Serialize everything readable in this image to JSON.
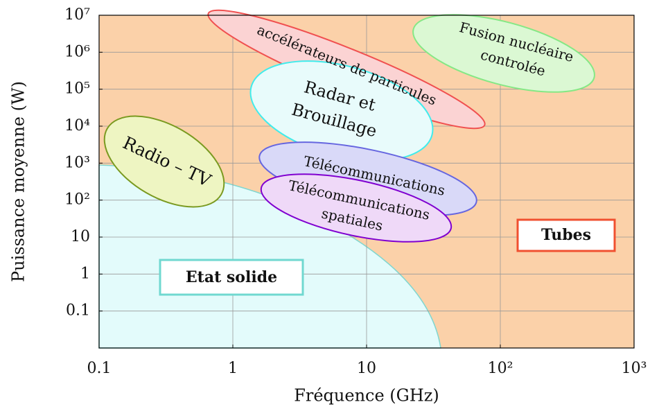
{
  "chart_data": {
    "type": "region",
    "x_label": "Fréquence (GHz)",
    "y_label": "Puissance moyenne (W)",
    "xlim": [
      0.1,
      1000
    ],
    "ylim": [
      0.01,
      10000000
    ],
    "log_x": true,
    "log_y": true,
    "grid": true,
    "xticks": [
      0.1,
      1,
      10,
      {
        "value": 100,
        "label": "10²"
      },
      {
        "value": 1000,
        "label": "10³"
      }
    ],
    "yticks": [
      0.1,
      1,
      10,
      {
        "value": 100,
        "label": "10²"
      },
      {
        "value": 1000,
        "label": "10³"
      },
      {
        "value": 10000,
        "label": "10⁴"
      },
      {
        "value": 100000,
        "label": "10⁵"
      },
      {
        "value": 1000000,
        "label": "10⁶"
      },
      {
        "value": 10000000,
        "label": "10⁷"
      }
    ],
    "regions": [
      "Etat solide",
      "Tubes"
    ],
    "zones": [
      {
        "lines": [
          "Radio – TV"
        ]
      },
      {
        "lines": [
          "accélérateurs de particules"
        ]
      },
      {
        "lines": [
          "Fusion nucléaire",
          "controlée"
        ]
      },
      {
        "lines": [
          "Radar et",
          "Brouillage"
        ]
      },
      {
        "lines": [
          "Télécommunications"
        ]
      },
      {
        "lines": [
          "Télécommunications",
          "spatiales"
        ]
      }
    ]
  }
}
